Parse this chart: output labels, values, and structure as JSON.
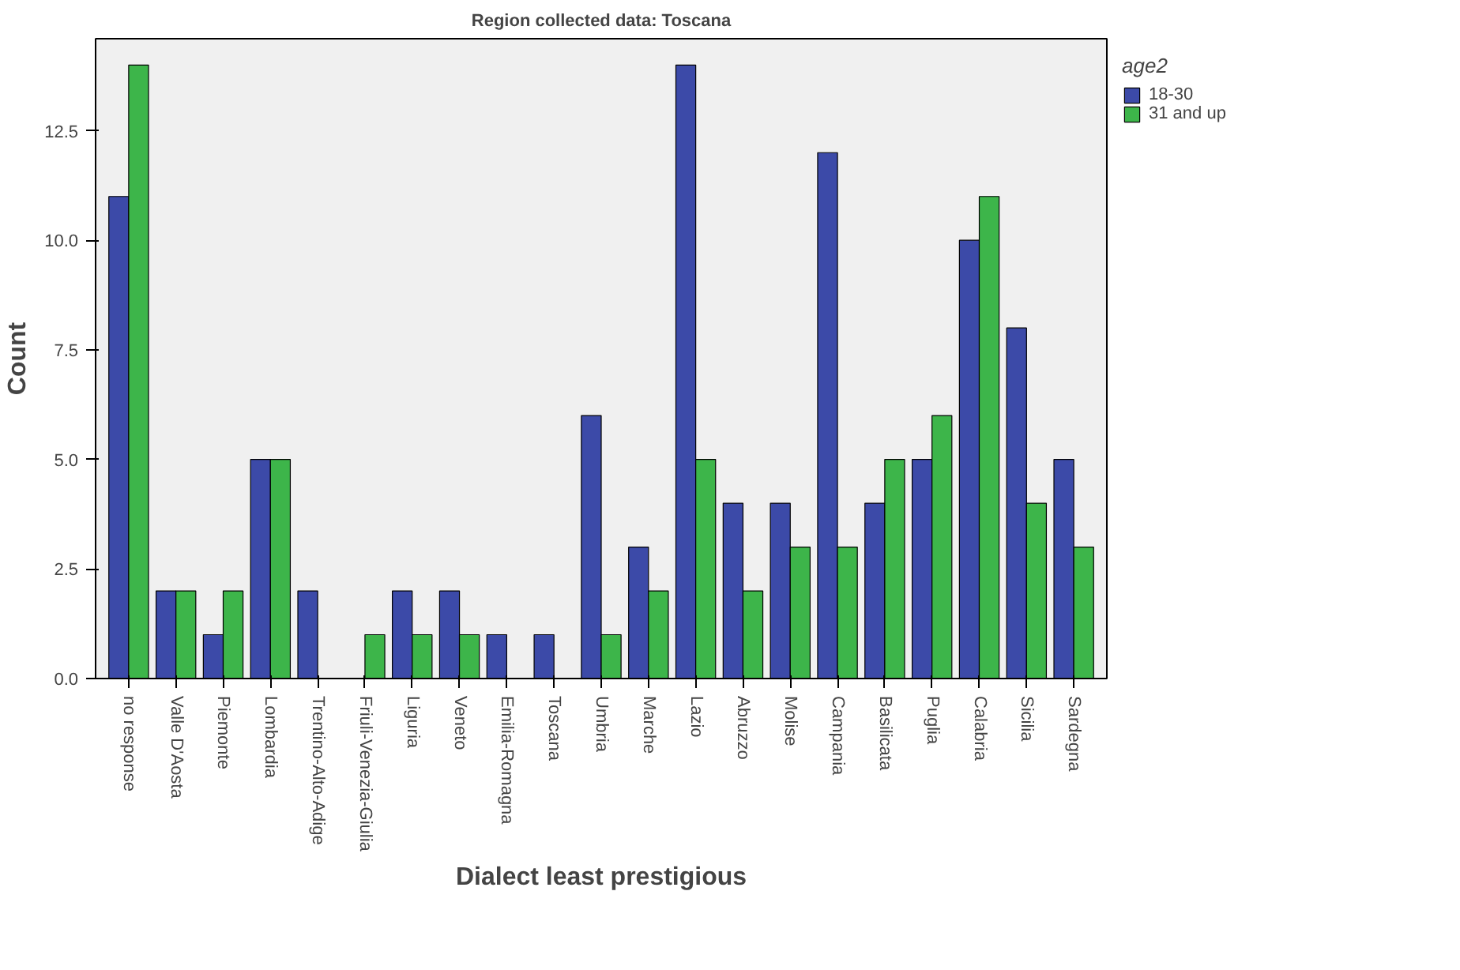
{
  "chart_data": {
    "type": "bar",
    "title": "Region collected data: Toscana",
    "xlabel": "Dialect least prestigious",
    "ylabel": "Count",
    "legend_title": "age2",
    "categories": [
      "no response",
      "Valle D'Aosta",
      "Piemonte",
      "Lombardia",
      "Trentino-Alto-Adige",
      "Friuli-Venezia-Giulia",
      "Liguria",
      "Veneto",
      "Emilia-Romagna",
      "Toscana",
      "Umbria",
      "Marche",
      "Lazio",
      "Abruzzo",
      "Molise",
      "Campania",
      "Basilicata",
      "Puglia",
      "Calabria",
      "Sicilia",
      "Sardegna"
    ],
    "series": [
      {
        "name": "18-30",
        "color": "#3c4aa8",
        "values": [
          11,
          2,
          1,
          5,
          2,
          null,
          2,
          2,
          1,
          1,
          6,
          3,
          14,
          4,
          4,
          12,
          4,
          5,
          10,
          8,
          5
        ]
      },
      {
        "name": "31 and up",
        "color": "#3db54a",
        "values": [
          14,
          2,
          2,
          5,
          null,
          1,
          1,
          1,
          null,
          null,
          1,
          2,
          5,
          2,
          3,
          3,
          5,
          6,
          11,
          4,
          3
        ]
      }
    ],
    "ylim": [
      0,
      14.6
    ],
    "yticks": [
      {
        "value": 0,
        "label": "0.0"
      },
      {
        "value": 2.5,
        "label": "2.5"
      },
      {
        "value": 5,
        "label": "5.0"
      },
      {
        "value": 7.5,
        "label": "7.5"
      },
      {
        "value": 10,
        "label": "10.0"
      },
      {
        "value": 12.5,
        "label": "12.5"
      }
    ],
    "grid": false,
    "legend": "top right"
  }
}
